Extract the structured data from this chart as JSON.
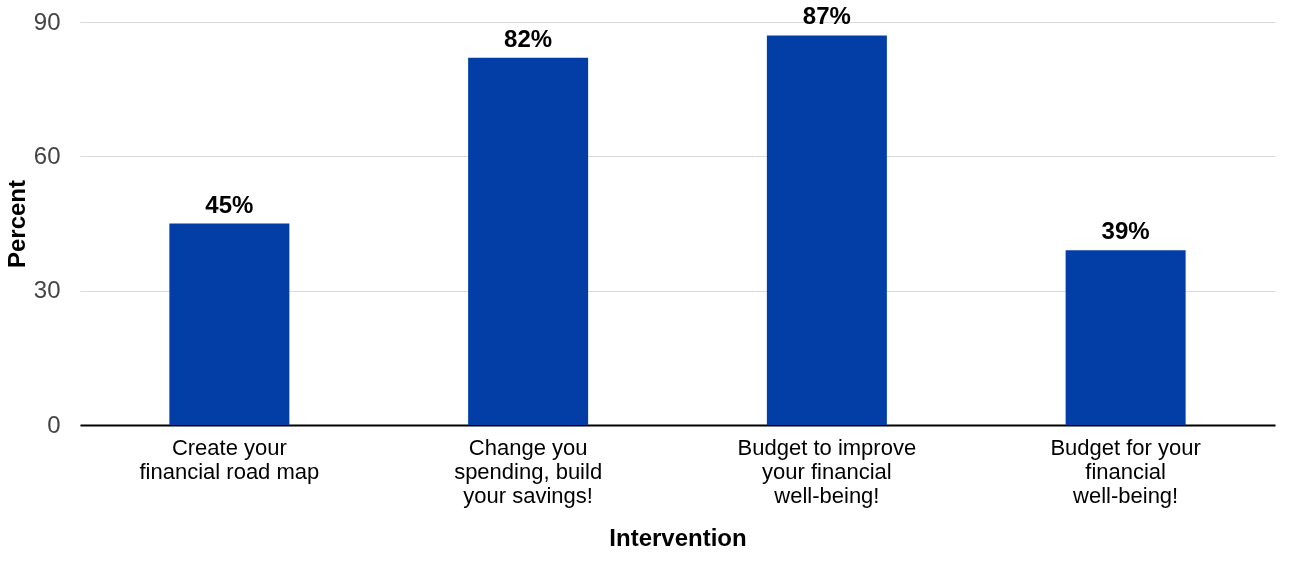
{
  "chart_data": {
    "type": "bar",
    "xlabel": "Intervention",
    "ylabel": "Percent",
    "categories": [
      "Create your financial road map",
      "Change you spending, build your savings!",
      "Budget to improve your financial well-being!",
      "Budget for your financial well-being!"
    ],
    "values": [
      45,
      82,
      87,
      39
    ],
    "value_labels": [
      "45%",
      "82%",
      "87%",
      "39%"
    ],
    "color": "#023ea6",
    "ylim": [
      0,
      90
    ],
    "yticks": [
      0,
      30,
      60,
      90
    ],
    "grid": "y"
  }
}
